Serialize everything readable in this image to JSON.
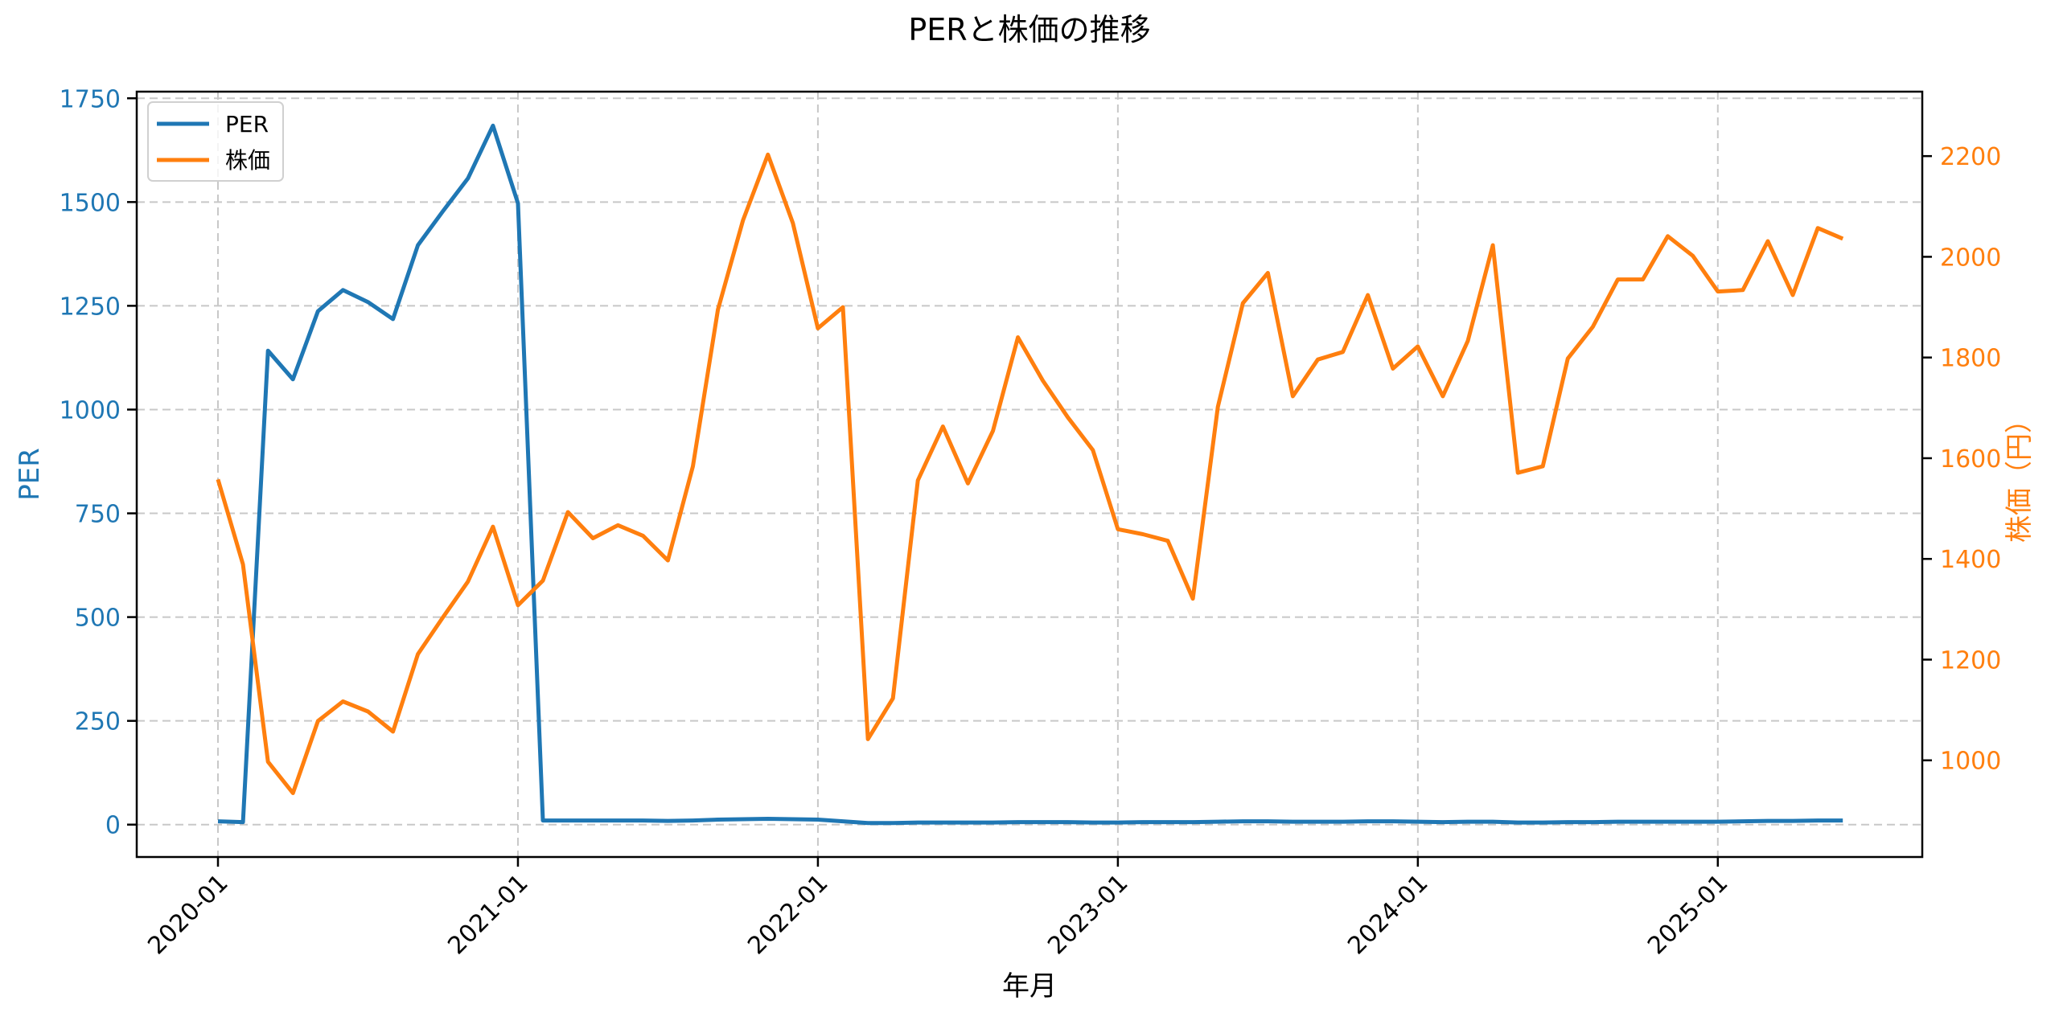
{
  "chart_data": {
    "type": "line",
    "title": "PERと株価の推移",
    "xlabel": "年月",
    "ylabel": "PER",
    "ylabel_right": "株価（円）",
    "x_tick_labels": [
      "2020-01",
      "2021-01",
      "2022-01",
      "2023-01",
      "2024-01",
      "2025-01"
    ],
    "y_ticks_left": [
      0,
      250,
      500,
      750,
      1000,
      1250,
      1500,
      1750
    ],
    "y_ticks_right": [
      1000,
      1200,
      1400,
      1600,
      1800,
      2000,
      2200
    ],
    "ylim": [
      -78,
      1766
    ],
    "ylim_right": [
      808,
      2328
    ],
    "grid": true,
    "legend_position": "upper left",
    "colors": {
      "PER": "#1f77b4",
      "株価": "#ff7f0e"
    },
    "x": [
      "2020-01",
      "2020-02",
      "2020-03",
      "2020-04",
      "2020-05",
      "2020-06",
      "2020-07",
      "2020-08",
      "2020-09",
      "2020-10",
      "2020-11",
      "2020-12",
      "2021-01",
      "2021-02",
      "2021-03",
      "2021-04",
      "2021-05",
      "2021-06",
      "2021-07",
      "2021-08",
      "2021-09",
      "2021-10",
      "2021-11",
      "2021-12",
      "2022-01",
      "2022-02",
      "2022-03",
      "2022-04",
      "2022-05",
      "2022-06",
      "2022-07",
      "2022-08",
      "2022-09",
      "2022-10",
      "2022-11",
      "2022-12",
      "2023-01",
      "2023-02",
      "2023-03",
      "2023-04",
      "2023-05",
      "2023-06",
      "2023-07",
      "2023-08",
      "2023-09",
      "2023-10",
      "2023-11",
      "2023-12",
      "2024-01",
      "2024-02",
      "2024-03",
      "2024-04",
      "2024-05",
      "2024-06",
      "2024-07",
      "2024-08",
      "2024-09",
      "2024-10",
      "2024-11",
      "2024-12",
      "2025-01",
      "2025-02",
      "2025-03",
      "2025-04",
      "2025-05",
      "2025-06"
    ],
    "series": [
      {
        "name": "PER",
        "axis": "left",
        "values": [
          8,
          6,
          1142,
          1073,
          1237,
          1288,
          1259,
          1218,
          1396,
          1478,
          1557,
          1684,
          1497,
          10,
          10,
          10,
          10,
          10,
          9,
          10,
          12,
          13,
          14,
          13,
          12,
          8,
          4,
          4,
          5,
          5,
          5,
          5,
          6,
          6,
          6,
          5,
          5,
          6,
          6,
          6,
          7,
          8,
          8,
          7,
          7,
          7,
          8,
          8,
          7,
          6,
          7,
          7,
          5,
          5,
          6,
          6,
          7,
          7,
          7,
          7,
          7,
          8,
          9,
          9,
          10,
          10
        ]
      },
      {
        "name": "株価",
        "axis": "right",
        "values": [
          1558,
          1389,
          997,
          935,
          1078,
          1117,
          1097,
          1057,
          1211,
          1284,
          1355,
          1464,
          1308,
          1357,
          1493,
          1441,
          1467,
          1446,
          1397,
          1584,
          1895,
          2072,
          2203,
          2067,
          1858,
          1900,
          1042,
          1123,
          1556,
          1663,
          1550,
          1654,
          1840,
          1754,
          1681,
          1616,
          1459,
          1449,
          1436,
          1321,
          1702,
          1908,
          1968,
          1723,
          1796,
          1811,
          1924,
          1778,
          1822,
          1723,
          1833,
          2023,
          1571,
          1584,
          1798,
          1861,
          1955,
          1955,
          2041,
          2002,
          1931,
          1934,
          2031,
          1924,
          2057,
          2036
        ]
      }
    ]
  },
  "legend": {
    "items": [
      {
        "label": "PER",
        "color": "#1f77b4"
      },
      {
        "label": "株価",
        "color": "#ff7f0e"
      }
    ]
  }
}
